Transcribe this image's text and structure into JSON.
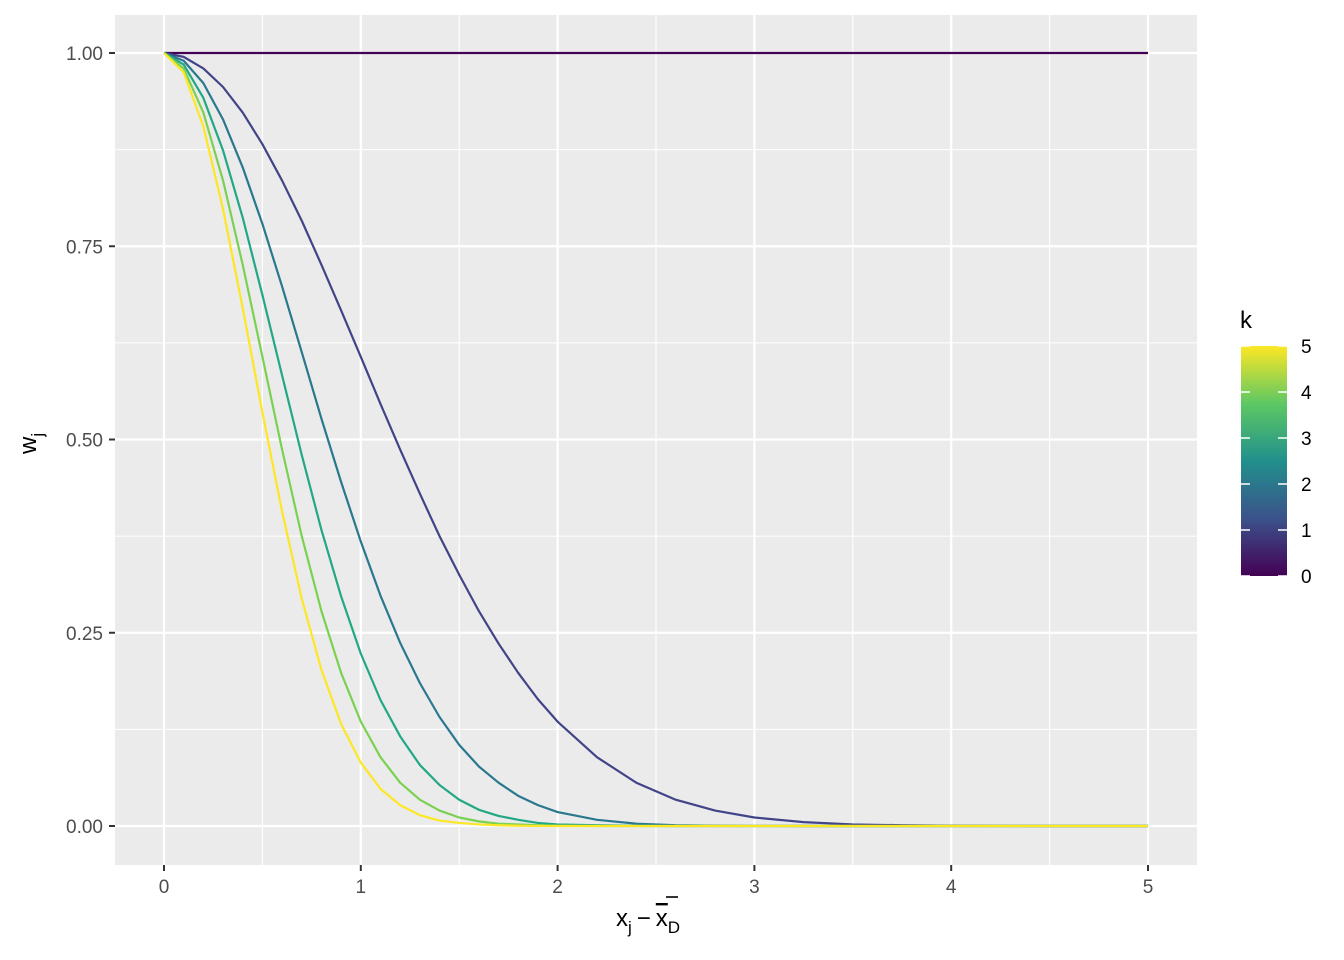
{
  "chart_data": {
    "type": "line",
    "xlabel": {
      "base": "x",
      "sub_j": "j",
      "minus": "−",
      "bar": "x",
      "sub_D": "D"
    },
    "ylabel": {
      "base": "w",
      "sub": "j"
    },
    "xlim": [
      0,
      5
    ],
    "ylim": [
      0,
      1
    ],
    "x_ticks": [
      "0",
      "1",
      "2",
      "3",
      "4",
      "5"
    ],
    "y_ticks": [
      "0.00",
      "0.25",
      "0.50",
      "0.75",
      "1.00"
    ],
    "x_tick_values": [
      0,
      1,
      2,
      3,
      4,
      5
    ],
    "y_tick_values": [
      0,
      0.25,
      0.5,
      0.75,
      1
    ],
    "grid": true,
    "panel_background": "#EBEBEB",
    "grid_color": "#FFFFFF",
    "legend": {
      "title": "k",
      "placement": "right",
      "type": "colorbar",
      "labels": [
        "5",
        "4",
        "3",
        "2",
        "1",
        "0"
      ],
      "values": [
        5,
        4,
        3,
        2,
        1,
        0
      ],
      "colors": [
        "#440154",
        "#3B528B",
        "#21908C",
        "#5DC863",
        "#FDE725"
      ]
    },
    "x": [
      0,
      0.1,
      0.2,
      0.3,
      0.4,
      0.5,
      0.6,
      0.7,
      0.8,
      0.9,
      1.0,
      1.1,
      1.2,
      1.3,
      1.4,
      1.5,
      1.6,
      1.7,
      1.8,
      1.9,
      2.0,
      2.2,
      2.4,
      2.6,
      2.8,
      3.0,
      3.25,
      3.5,
      3.75,
      4.0,
      4.5,
      5.0
    ],
    "series": [
      {
        "k": 0,
        "color": "#440154",
        "values": [
          1,
          1,
          1,
          1,
          1,
          1,
          1,
          1,
          1,
          1,
          1,
          1,
          1,
          1,
          1,
          1,
          1,
          1,
          1,
          1,
          1,
          1,
          1,
          1,
          1,
          1,
          1,
          1,
          1,
          1,
          1,
          1
        ]
      },
      {
        "k": 1,
        "color": "#414487",
        "values": [
          1.0,
          0.995,
          0.98,
          0.956,
          0.923,
          0.882,
          0.835,
          0.783,
          0.726,
          0.667,
          0.607,
          0.546,
          0.487,
          0.43,
          0.375,
          0.325,
          0.278,
          0.236,
          0.198,
          0.164,
          0.135,
          0.089,
          0.056,
          0.034,
          0.02,
          0.011,
          0.005,
          0.002,
          0.001,
          0.0003,
          0.0,
          0.0
        ]
      },
      {
        "k": 2,
        "color": "#2A788E",
        "values": [
          1.0,
          0.99,
          0.961,
          0.914,
          0.852,
          0.779,
          0.698,
          0.613,
          0.527,
          0.445,
          0.368,
          0.298,
          0.237,
          0.185,
          0.141,
          0.105,
          0.077,
          0.056,
          0.039,
          0.027,
          0.018,
          0.008,
          0.003,
          0.001,
          0.0004,
          0.0001,
          0.0,
          0.0,
          0.0,
          0.0,
          0.0,
          0.0
        ]
      },
      {
        "k": 3,
        "color": "#22A884",
        "values": [
          1.0,
          0.985,
          0.942,
          0.874,
          0.787,
          0.687,
          0.583,
          0.48,
          0.383,
          0.297,
          0.223,
          0.163,
          0.116,
          0.079,
          0.053,
          0.034,
          0.021,
          0.013,
          0.008,
          0.004,
          0.002,
          0.001,
          0.0002,
          0.0,
          0.0,
          0.0,
          0.0,
          0.0,
          0.0,
          0.0,
          0.0,
          0.0
        ]
      },
      {
        "k": 4,
        "color": "#7AD151",
        "values": [
          1.0,
          0.98,
          0.923,
          0.835,
          0.726,
          0.607,
          0.487,
          0.375,
          0.278,
          0.198,
          0.135,
          0.089,
          0.056,
          0.034,
          0.02,
          0.011,
          0.006,
          0.003,
          0.002,
          0.001,
          0.0003,
          0.0,
          0.0,
          0.0,
          0.0,
          0.0,
          0.0,
          0.0,
          0.0,
          0.0,
          0.0,
          0.0
        ]
      },
      {
        "k": 5,
        "color": "#FDE725",
        "values": [
          1.0,
          0.975,
          0.905,
          0.798,
          0.67,
          0.535,
          0.407,
          0.294,
          0.202,
          0.132,
          0.082,
          0.048,
          0.027,
          0.014,
          0.007,
          0.004,
          0.002,
          0.001,
          0.0003,
          0.0001,
          0.0,
          0.0,
          0.0,
          0.0,
          0.0,
          0.0,
          0.0,
          0.0,
          0.0,
          0.0,
          0.0,
          0.0
        ]
      }
    ]
  }
}
